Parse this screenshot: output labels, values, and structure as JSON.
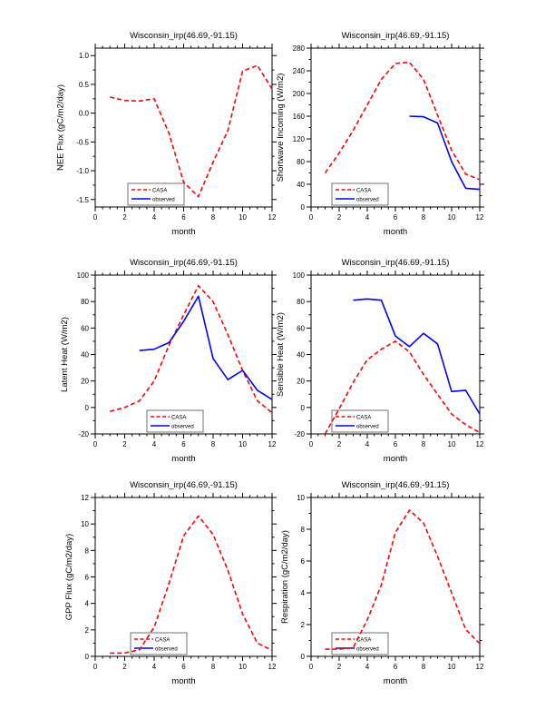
{
  "page": {
    "background": "#ffffff"
  },
  "colors": {
    "casa": "#ff0000",
    "observed": "#0000ff",
    "axis": "#000000",
    "legend_border": "#888888"
  },
  "legend": {
    "items": [
      "CASA",
      "observed"
    ]
  },
  "chart_data": [
    {
      "type": "line",
      "title": "Wisconsin_irp(46.69,-91.15)",
      "xlabel": "month",
      "ylabel": "NEE Flux (gC/m2/day)",
      "xlim": [
        0,
        12
      ],
      "xtick_step": 2,
      "xminor_step": 0.5,
      "yticks": {
        "min": -1.5,
        "max": 1.0,
        "step": 0.5,
        "decimals": 1
      },
      "ylim": [
        -1.63,
        1.13
      ],
      "legend_entries": [
        "CASA",
        "observed"
      ],
      "series": [
        {
          "name": "CASA",
          "color": "#ff0000",
          "style": "dashed",
          "x": [
            1,
            2,
            3,
            4,
            5,
            6,
            7,
            8,
            9,
            10,
            11,
            12
          ],
          "y": [
            0.28,
            0.22,
            0.21,
            0.25,
            -0.35,
            -1.2,
            -1.45,
            -0.85,
            -0.3,
            0.73,
            0.83,
            0.42
          ]
        },
        {
          "name": "observed",
          "color": "#0000ff",
          "style": "solid",
          "x": [],
          "y": []
        }
      ]
    },
    {
      "type": "line",
      "title": "Wisconsin_irp(46.69,-91.15)",
      "xlabel": "month",
      "ylabel": "Shortwave Incoming (W/m2)",
      "xlim": [
        0,
        12
      ],
      "xtick_step": 2,
      "xminor_step": 0.5,
      "yticks": {
        "min": 0,
        "max": 280,
        "step": 40,
        "decimals": 0
      },
      "ylim": [
        0,
        280
      ],
      "legend_entries": [
        "CASA",
        "observed"
      ],
      "series": [
        {
          "name": "CASA",
          "color": "#ff0000",
          "style": "dashed",
          "x": [
            1,
            2,
            3,
            4,
            5,
            6,
            7,
            8,
            9,
            10,
            11,
            12
          ],
          "y": [
            60,
            95,
            135,
            180,
            225,
            253,
            255,
            225,
            162,
            100,
            58,
            48
          ]
        },
        {
          "name": "observed",
          "color": "#0000ff",
          "style": "solid",
          "x": [
            7,
            8,
            9,
            10,
            11,
            12
          ],
          "y": [
            160,
            159,
            148,
            80,
            33,
            31
          ]
        }
      ]
    },
    {
      "type": "line",
      "title": "Wisconsin_irp(46.69,-91.15)",
      "xlabel": "month",
      "ylabel": "Latent Heat (W/m2)",
      "xlim": [
        0,
        12
      ],
      "xtick_step": 2,
      "xminor_step": 0.5,
      "yticks": {
        "min": -20,
        "max": 100,
        "step": 20,
        "decimals": 0
      },
      "ylim": [
        -20,
        100
      ],
      "legend_entries": [
        "CASA",
        "observed"
      ],
      "series": [
        {
          "name": "CASA",
          "color": "#ff0000",
          "style": "dashed",
          "x": [
            1,
            2,
            3,
            4,
            5,
            6,
            7,
            8,
            9,
            10,
            11,
            12
          ],
          "y": [
            -3,
            0,
            5,
            20,
            47,
            70,
            92,
            80,
            55,
            28,
            5,
            -4
          ]
        },
        {
          "name": "observed",
          "color": "#0000ff",
          "style": "solid",
          "x": [
            3,
            4,
            5,
            6,
            7,
            8,
            9,
            10,
            11,
            12
          ],
          "y": [
            43,
            44,
            49,
            65,
            84,
            37,
            21,
            28,
            13,
            6
          ]
        }
      ]
    },
    {
      "type": "line",
      "title": "Wisconsin_irp(46.69,-91.15)",
      "xlabel": "month",
      "ylabel": "Sensible Heat (W/m2)",
      "xlim": [
        0,
        12
      ],
      "xtick_step": 2,
      "xminor_step": 0.5,
      "yticks": {
        "min": -20,
        "max": 100,
        "step": 20,
        "decimals": 0
      },
      "ylim": [
        -20,
        100
      ],
      "legend_entries": [
        "CASA",
        "observed"
      ],
      "series": [
        {
          "name": "CASA",
          "color": "#ff0000",
          "style": "dashed",
          "x": [
            1,
            2,
            3,
            4,
            5,
            6,
            7,
            8,
            9,
            10,
            11,
            12
          ],
          "y": [
            -20,
            -1,
            19,
            36,
            44,
            50,
            42,
            25,
            10,
            -5,
            -13,
            -19
          ]
        },
        {
          "name": "observed",
          "color": "#0000ff",
          "style": "solid",
          "x": [
            3,
            4,
            5,
            6,
            7,
            8,
            9,
            10,
            11,
            12
          ],
          "y": [
            81,
            82,
            81,
            54,
            46,
            56,
            48,
            12,
            13,
            -5
          ]
        }
      ]
    },
    {
      "type": "line",
      "title": "Wisconsin_irp(46.69,-91.15)",
      "xlabel": "month",
      "ylabel": "GPP Flux (gC/m2/day)",
      "xlim": [
        0,
        12
      ],
      "xtick_step": 2,
      "xminor_step": 0.5,
      "yticks": {
        "min": 0,
        "max": 12,
        "step": 2,
        "decimals": 0
      },
      "ylim": [
        0,
        12
      ],
      "legend_entries": [
        "CASA",
        "observed"
      ],
      "series": [
        {
          "name": "CASA",
          "color": "#ff0000",
          "style": "dashed",
          "x": [
            1,
            2,
            3,
            4,
            5,
            6,
            7,
            8,
            9,
            10,
            11,
            12
          ],
          "y": [
            0.25,
            0.25,
            0.5,
            2.2,
            5.5,
            9.1,
            10.6,
            9.2,
            6.5,
            3.2,
            1.0,
            0.45
          ]
        },
        {
          "name": "observed",
          "color": "#0000ff",
          "style": "solid",
          "x": [],
          "y": []
        }
      ]
    },
    {
      "type": "line",
      "title": "Wisconsin_irp(46.69,-91.15)",
      "xlabel": "month",
      "ylabel": "Respiration (gC/m2/day)",
      "xlim": [
        0,
        12
      ],
      "xtick_step": 2,
      "xminor_step": 0.5,
      "yticks": {
        "min": 0,
        "max": 10,
        "step": 2,
        "decimals": 0
      },
      "ylim": [
        0,
        10
      ],
      "legend_entries": [
        "CASA",
        "observed"
      ],
      "series": [
        {
          "name": "CASA",
          "color": "#ff0000",
          "style": "dashed",
          "x": [
            1,
            2,
            3,
            4,
            5,
            6,
            7,
            8,
            9,
            10,
            11,
            12
          ],
          "y": [
            0.45,
            0.45,
            0.55,
            2.3,
            4.5,
            7.8,
            9.2,
            8.4,
            6.3,
            4.0,
            1.7,
            0.8
          ]
        },
        {
          "name": "observed",
          "color": "#0000ff",
          "style": "solid",
          "x": [],
          "y": []
        }
      ]
    }
  ]
}
